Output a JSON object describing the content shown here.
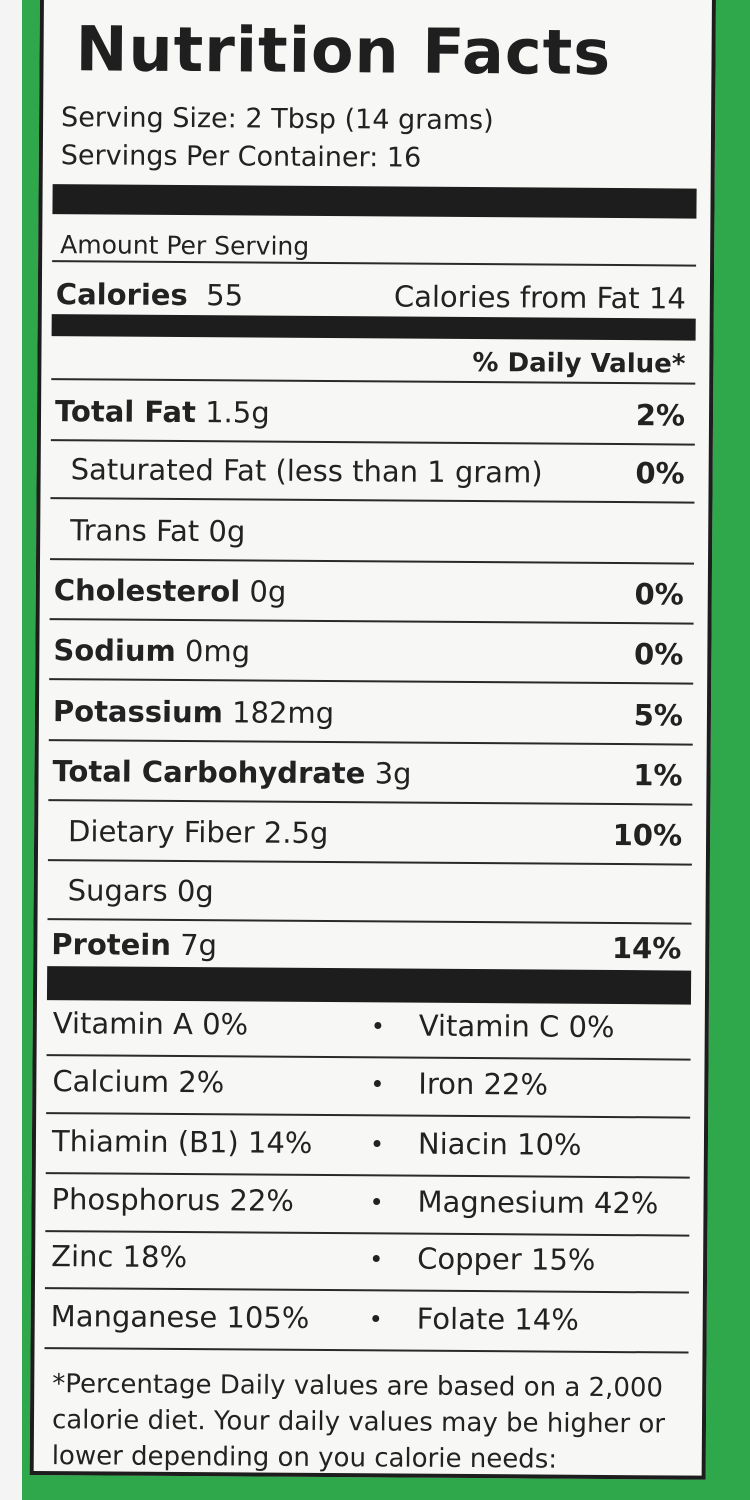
{
  "title": "Nutrition Facts",
  "serving_size": "Serving Size:  2 Tbsp (14 grams)",
  "servings_per_container": "Servings Per Container: 16",
  "amount_per_serving": "Amount Per Serving",
  "calories": {
    "label": "Calories",
    "value": "55",
    "from_fat": "Calories from Fat 14"
  },
  "daily_value_header": "% Daily Value*",
  "nutrients": [
    {
      "name": "Total Fat",
      "amount": "1.5g",
      "dv": "2%",
      "bold": true
    },
    {
      "name": "Saturated Fat (less than 1 gram)",
      "amount": "",
      "dv": "0%",
      "bold": false
    },
    {
      "name": "Trans Fat 0g",
      "amount": "",
      "dv": "",
      "bold": false
    },
    {
      "name": "Cholesterol",
      "amount": "0g",
      "dv": "0%",
      "bold": true
    },
    {
      "name": "Sodium",
      "amount": "0mg",
      "dv": "0%",
      "bold": true
    },
    {
      "name": "Potassium",
      "amount": "182mg",
      "dv": "5%",
      "bold": true
    },
    {
      "name": "Total Carbohydrate",
      "amount": "3g",
      "dv": "1%",
      "bold": true
    },
    {
      "name": "Dietary Fiber 2.5g",
      "amount": "",
      "dv": "10%",
      "bold": false
    },
    {
      "name": "Sugars 0g",
      "amount": "",
      "dv": "",
      "bold": false
    },
    {
      "name": "Protein",
      "amount": "7g",
      "dv": "14%",
      "bold": true
    }
  ],
  "vitamins": [
    {
      "left": "Vitamin A 0%",
      "right": "Vitamin C 0%"
    },
    {
      "left": "Calcium 2%",
      "right": "Iron 22%"
    },
    {
      "left": "Thiamin (B1) 14%",
      "right": "Niacin 10%"
    },
    {
      "left": "Phosphorus 22%",
      "right": "Magnesium 42%"
    },
    {
      "left": "Zinc 18%",
      "right": "Copper 15%"
    },
    {
      "left": "Manganese 105%",
      "right": "Folate 14%"
    }
  ],
  "separator": "•",
  "footnote": "*Percentage Daily values are based on a 2,000 calorie diet. Your daily values may be higher or lower depending on you calorie needs:",
  "colors": {
    "background": "#2ea84b",
    "label": "#f7f7f5",
    "ink": "#1d1d1d"
  }
}
